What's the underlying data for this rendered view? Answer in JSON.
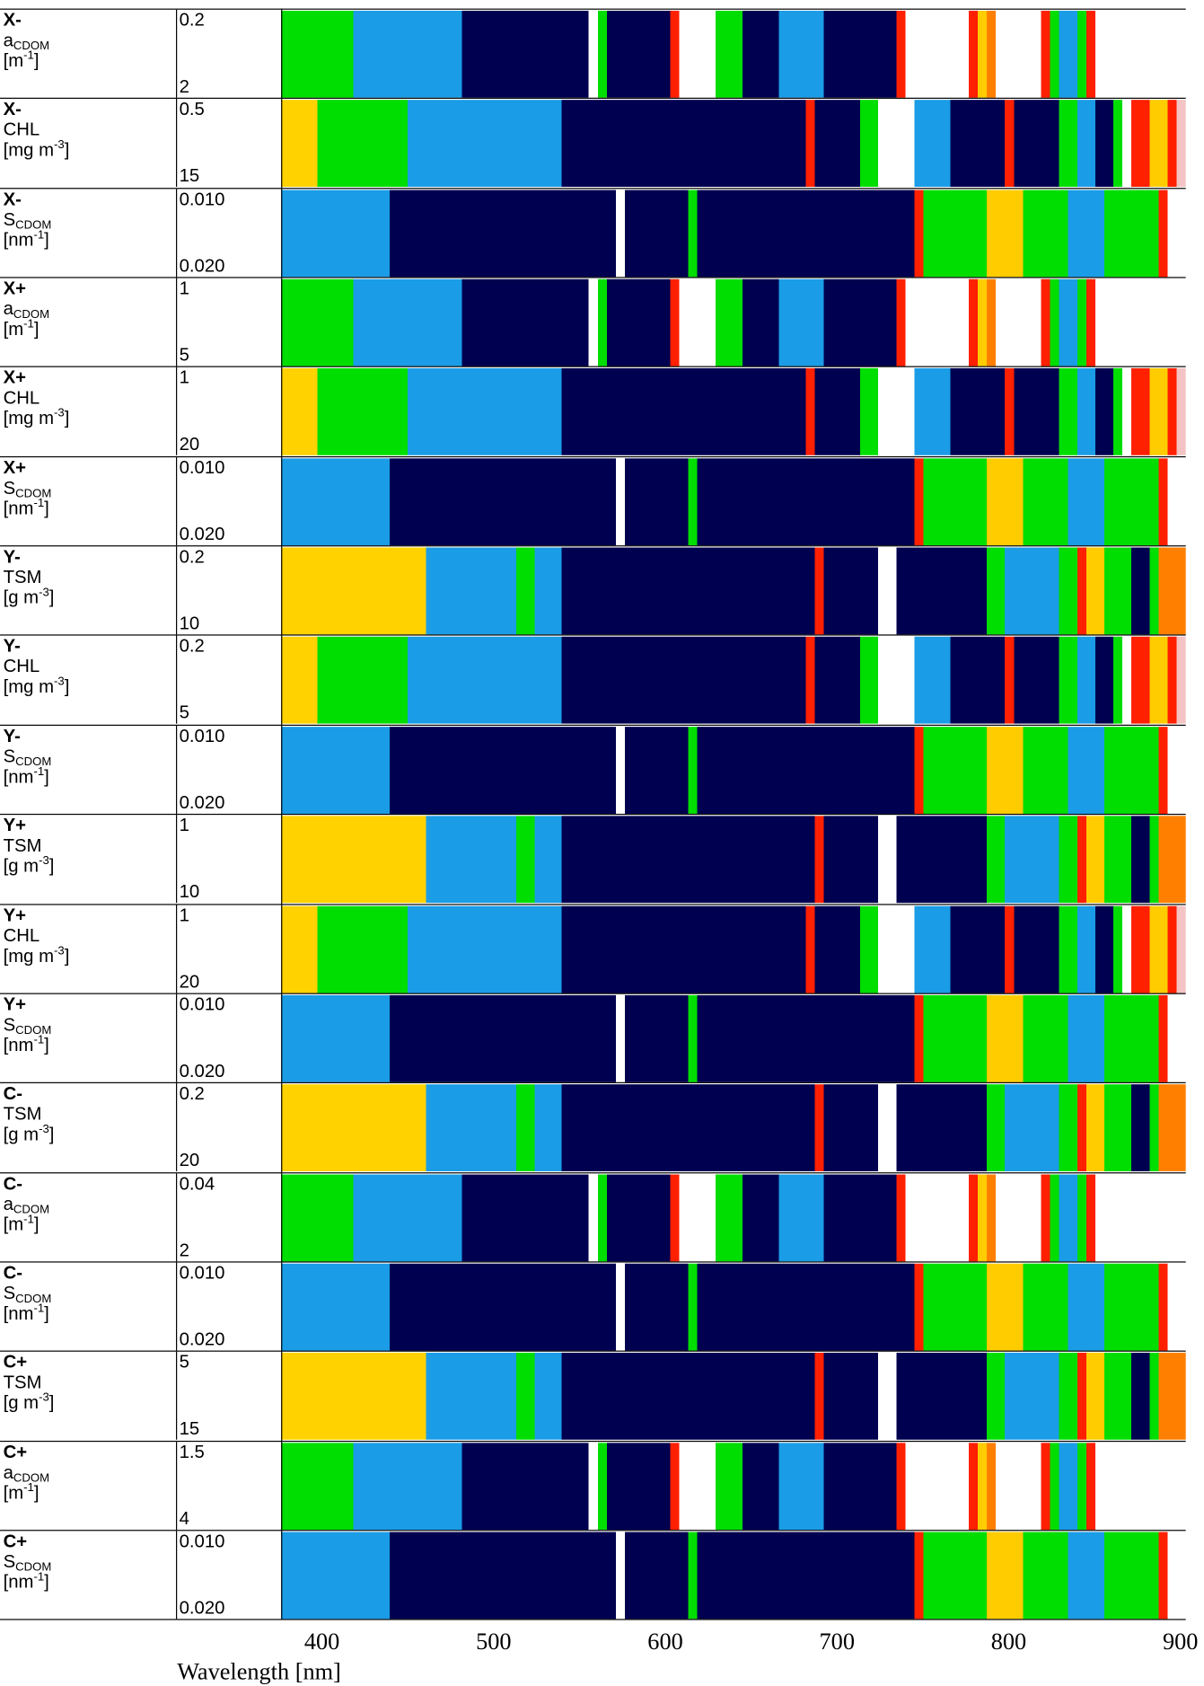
{
  "rows": [
    {
      "group": "X-",
      "param": {
        "main": "a",
        "sub": "CDOM"
      },
      "unit": {
        "pre": "[m",
        "sup": "-1",
        "post": "]"
      },
      "min": "0.2",
      "max": "2"
    },
    {
      "group": "X-",
      "param": {
        "main": "CHL"
      },
      "unit": {
        "pre": "[mg m",
        "sup": "-3",
        "post": "]"
      },
      "min": "0.5",
      "max": "15"
    },
    {
      "group": "X-",
      "param": {
        "main": "S",
        "sub": "CDOM"
      },
      "unit": {
        "pre": "[nm",
        "sup": "-1",
        "post": "]"
      },
      "min": "0.010",
      "max": "0.020"
    },
    {
      "group": "X+",
      "param": {
        "main": "a",
        "sub": "CDOM"
      },
      "unit": {
        "pre": "[m",
        "sup": "-1",
        "post": "]"
      },
      "min": "1",
      "max": "5"
    },
    {
      "group": "X+",
      "param": {
        "main": "CHL"
      },
      "unit": {
        "pre": "[mg m",
        "sup": "-3",
        "post": "]"
      },
      "min": "1",
      "max": "20"
    },
    {
      "group": "X+",
      "param": {
        "main": "S",
        "sub": "CDOM"
      },
      "unit": {
        "pre": "[nm",
        "sup": "-1",
        "post": "]"
      },
      "min": "0.010",
      "max": "0.020"
    },
    {
      "group": "Y-",
      "param": {
        "main": "TSM"
      },
      "unit": {
        "pre": "[g m",
        "sup": "-3",
        "post": "]"
      },
      "min": "0.2",
      "max": "10"
    },
    {
      "group": "Y-",
      "param": {
        "main": "CHL"
      },
      "unit": {
        "pre": "[mg m",
        "sup": "-3",
        "post": "]"
      },
      "min": "0.2",
      "max": "5"
    },
    {
      "group": "Y-",
      "param": {
        "main": "S",
        "sub": "CDOM"
      },
      "unit": {
        "pre": "[nm",
        "sup": "-1",
        "post": "]"
      },
      "min": "0.010",
      "max": "0.020"
    },
    {
      "group": "Y+",
      "param": {
        "main": "TSM"
      },
      "unit": {
        "pre": "[g m",
        "sup": "-3",
        "post": "]"
      },
      "min": "1",
      "max": "10"
    },
    {
      "group": "Y+",
      "param": {
        "main": "CHL"
      },
      "unit": {
        "pre": "[mg m",
        "sup": "-3",
        "post": "]"
      },
      "min": "1",
      "max": "20"
    },
    {
      "group": "Y+",
      "param": {
        "main": "S",
        "sub": "CDOM"
      },
      "unit": {
        "pre": "[nm",
        "sup": "-1",
        "post": "]"
      },
      "min": "0.010",
      "max": "0.020"
    },
    {
      "group": "C-",
      "param": {
        "main": "TSM"
      },
      "unit": {
        "pre": "[g m",
        "sup": "-3",
        "post": "]"
      },
      "min": "0.2",
      "max": "20"
    },
    {
      "group": "C-",
      "param": {
        "main": "a",
        "sub": "CDOM"
      },
      "unit": {
        "pre": "[m",
        "sup": "-1",
        "post": "]"
      },
      "min": "0.04",
      "max": "2"
    },
    {
      "group": "C-",
      "param": {
        "main": "S",
        "sub": "CDOM"
      },
      "unit": {
        "pre": "[nm",
        "sup": "-1",
        "post": "]"
      },
      "min": "0.010",
      "max": "0.020"
    },
    {
      "group": "C+",
      "param": {
        "main": "TSM"
      },
      "unit": {
        "pre": "[g m",
        "sup": "-3",
        "post": "]"
      },
      "min": "5",
      "max": "15"
    },
    {
      "group": "C+",
      "param": {
        "main": "a",
        "sub": "CDOM"
      },
      "unit": {
        "pre": "[m",
        "sup": "-1",
        "post": "]"
      },
      "min": "1.5",
      "max": "4"
    },
    {
      "group": "C+",
      "param": {
        "main": "S",
        "sub": "CDOM"
      },
      "unit": {
        "pre": "[nm",
        "sup": "-1",
        "post": "]"
      },
      "min": "0.010",
      "max": "0.020"
    }
  ],
  "x_axis": {
    "ticks": [
      "400",
      "500",
      "600",
      "700",
      "800",
      "900"
    ],
    "label": "Wavelength [nm]"
  }
}
